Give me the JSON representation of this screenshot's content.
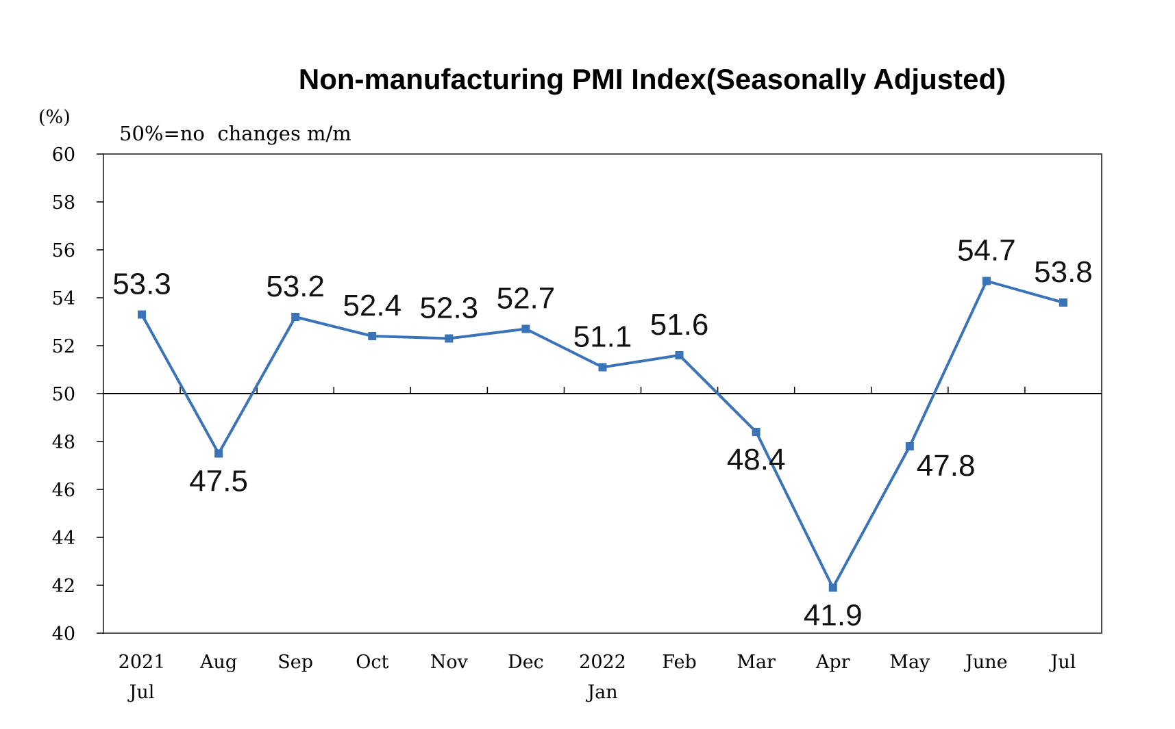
{
  "chart_data": {
    "type": "line",
    "title": "Non-manufacturing PMI Index(Seasonally Adjusted)",
    "unit_label": "(%)",
    "note": "50%=no  changes m/m",
    "ylabel": "",
    "xlabel": "",
    "ylim": [
      40,
      60
    ],
    "yticks": [
      "40",
      "42",
      "44",
      "46",
      "48",
      "50",
      "52",
      "54",
      "56",
      "58",
      "60"
    ],
    "reference_line": 50,
    "grid": false,
    "categories": [
      [
        "2021",
        "Jul"
      ],
      [
        "Aug"
      ],
      [
        "Sep"
      ],
      [
        "Oct"
      ],
      [
        "Nov"
      ],
      [
        "Dec"
      ],
      [
        "2022",
        "Jan"
      ],
      [
        "Feb"
      ],
      [
        "Mar"
      ],
      [
        "Apr"
      ],
      [
        "May"
      ],
      [
        "June"
      ],
      [
        "Jul"
      ]
    ],
    "series": [
      {
        "values": [
          53.3,
          47.5,
          53.2,
          52.4,
          52.3,
          52.7,
          51.1,
          51.6,
          48.4,
          41.9,
          47.8,
          54.7,
          53.8
        ],
        "labels": [
          "53.3",
          "47.5",
          "53.2",
          "52.4",
          "52.3",
          "52.7",
          "51.1",
          "51.6",
          "48.4",
          "41.9",
          "47.8",
          "54.7",
          "53.8"
        ],
        "label_position": [
          "above",
          "below",
          "above",
          "above",
          "above",
          "above",
          "above",
          "above",
          "below",
          "below",
          "below-right",
          "above",
          "above"
        ],
        "color": "#3a73b8"
      }
    ],
    "axis_color": "#000000",
    "plot_border_color": "#4d4d4d"
  }
}
